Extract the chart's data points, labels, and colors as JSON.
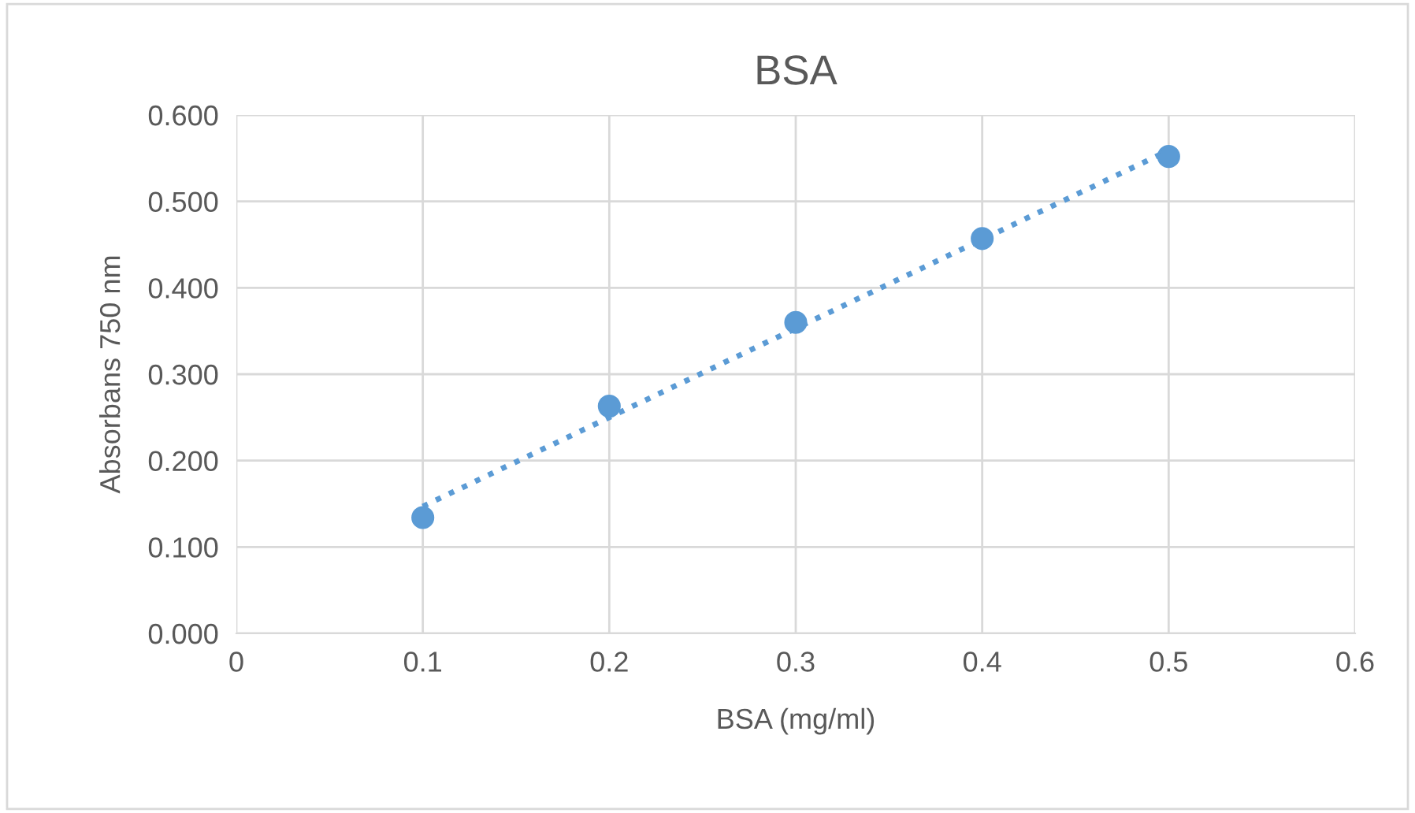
{
  "chart_data": {
    "type": "scatter",
    "title": "BSA",
    "xlabel": "BSA (mg/ml)",
    "ylabel": "Absorbans 750 nm",
    "x": [
      0.1,
      0.2,
      0.3,
      0.4,
      0.5
    ],
    "series": [
      {
        "color": "#5b9bd5",
        "values": [
          0.134,
          0.263,
          0.36,
          0.457,
          0.552
        ],
        "marker": "circle"
      },
      {
        "type": "line",
        "color": "#5b9bd5",
        "x": [
          0.1,
          0.5
        ],
        "values": [
          0.147,
          0.559
        ],
        "line_style": "dotted",
        "marker": "none"
      }
    ],
    "xlim": [
      0,
      0.6
    ],
    "xticks": [
      0,
      0.1,
      0.2,
      0.3,
      0.4,
      0.5,
      0.6
    ],
    "ylim": [
      0,
      0.6
    ],
    "yticks": [
      {
        "value": 0,
        "label": "0.000"
      },
      {
        "value": 0.1,
        "label": "0.100"
      },
      {
        "value": 0.2,
        "label": "0.200"
      },
      {
        "value": 0.3,
        "label": "0.300"
      },
      {
        "value": 0.4,
        "label": "0.400"
      },
      {
        "value": 0.5,
        "label": "0.500"
      },
      {
        "value": 0.6,
        "label": "0.600"
      }
    ],
    "grid": true,
    "legend": false
  }
}
